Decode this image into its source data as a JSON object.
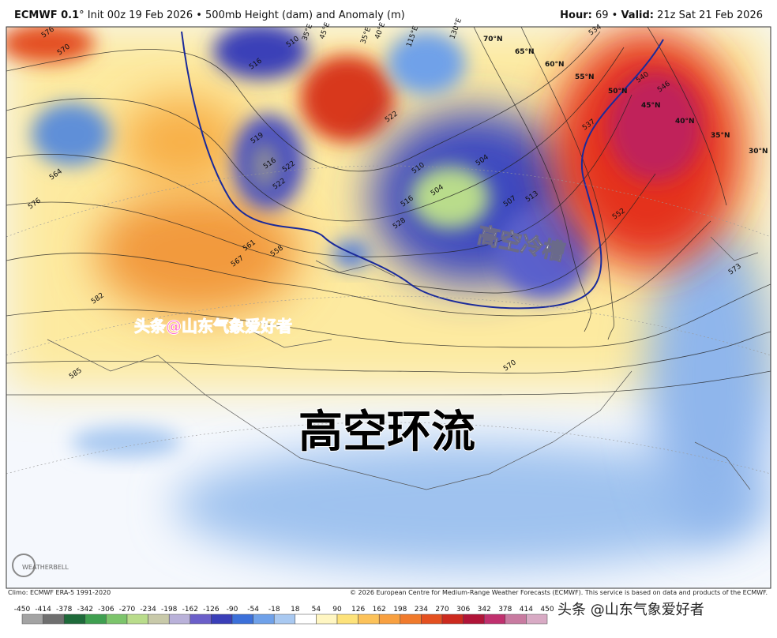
{
  "header": {
    "title_bold": "ECMWF 0.1",
    "title_rest": "° Init 00z 19 Feb 2026 • 500mb Height (dam) and Anomaly (m)",
    "hour_label": "Hour:",
    "hour": "69 • ",
    "valid_label": "Valid:",
    "valid": "21z Sat 21 Feb 2026"
  },
  "map": {
    "contour_labels": [
      576,
      570,
      564,
      576,
      510,
      516,
      519,
      522,
      516,
      522,
      522,
      510,
      504,
      516,
      528,
      504,
      507,
      513,
      534,
      540,
      546,
      537,
      552,
      558,
      561,
      567,
      582,
      585,
      570,
      573
    ],
    "lat_labels": [
      "70°N",
      "65°N",
      "60°N",
      "55°N",
      "50°N",
      "45°N",
      "40°N",
      "35°N",
      "30°N"
    ],
    "lon_labels": [
      "35°E",
      "45°E",
      "35°E",
      "40°E",
      "115°E",
      "130°E"
    ],
    "overlays": {
      "trough": "高空冷槽",
      "circulation": "高空环流",
      "watermark": "头条@山东气象爱好者"
    },
    "logo": "WEATHERBELL"
  },
  "footer": {
    "climo": "Climo: ECMWF ERA-5 1991-2020",
    "copyright": "© 2026 European Centre for Medium-Range Weather Forecasts (ECMWF). This service is based on data and products of the ECMWF."
  },
  "colorbar": {
    "ticks": [
      -450,
      -414,
      -378,
      -342,
      -306,
      -270,
      -234,
      -198,
      -162,
      -126,
      -90,
      -54,
      -18,
      18,
      54,
      90,
      126,
      162,
      198,
      234,
      270,
      306,
      342,
      378,
      414,
      450
    ],
    "colors": [
      "#a3a3a3",
      "#6f6f6f",
      "#1e6a3a",
      "#3f9f50",
      "#7cc46b",
      "#b9dc8b",
      "#c8c9a9",
      "#b9b1d9",
      "#6b5fc9",
      "#3a3fb8",
      "#3c70d9",
      "#6fa1e9",
      "#a9c9f1",
      "#ffffff",
      "#fff6c2",
      "#fde27a",
      "#fcc25a",
      "#f8a040",
      "#f07a2c",
      "#e45020",
      "#cc2a1e",
      "#b01438",
      "#c0306e",
      "#c87aa0",
      "#d8aac4"
    ]
  },
  "bottom_watermark": "头条 @山东气象爱好者"
}
